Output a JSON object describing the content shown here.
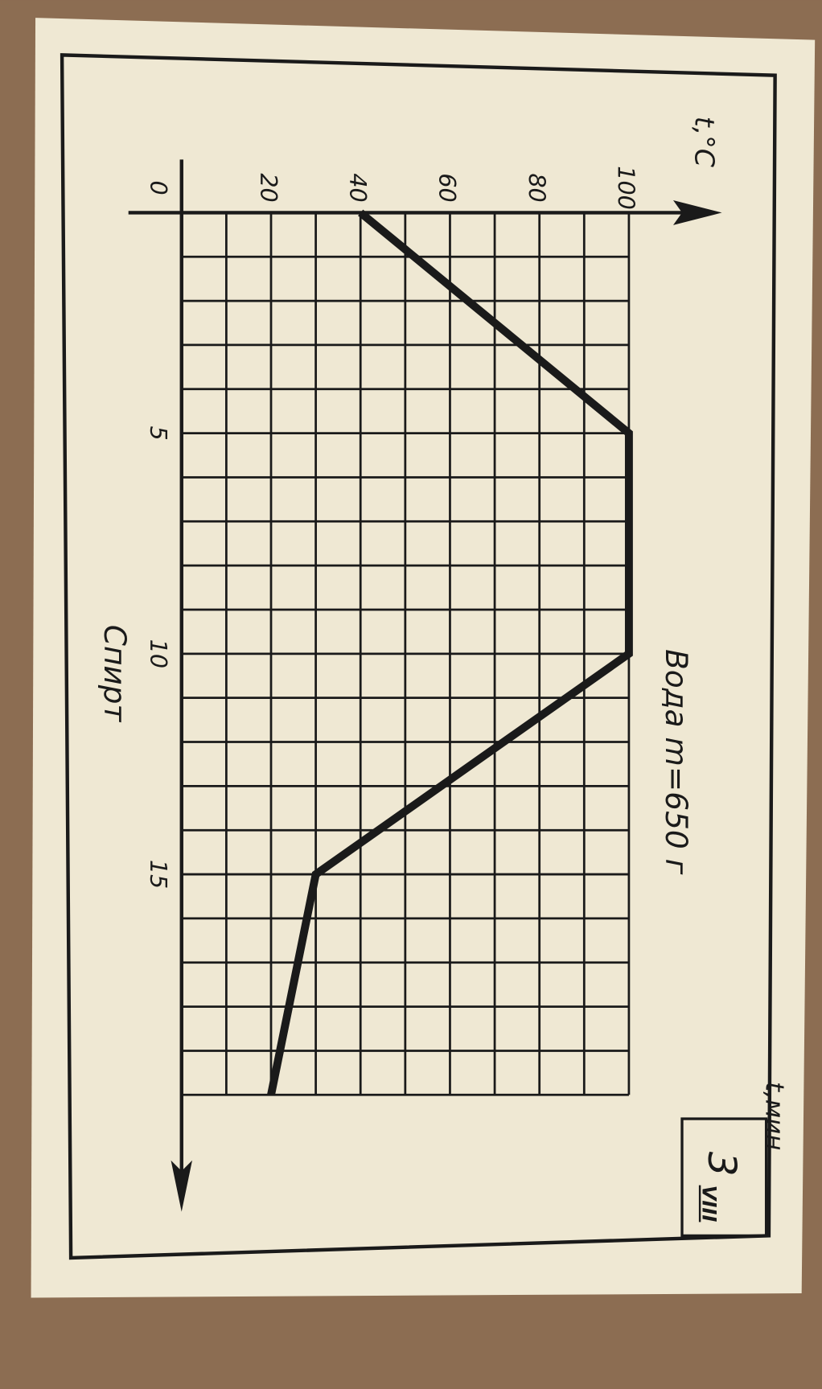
{
  "chart_data": {
    "type": "line",
    "xlabel": "t,мин",
    "ylabel": "t,°C",
    "x_ticks": [
      "5",
      "10",
      "15"
    ],
    "y_ticks": [
      "0",
      "20",
      "40",
      "60",
      "80",
      "100"
    ],
    "xlim": [
      0,
      20
    ],
    "ylim": [
      0,
      100
    ],
    "grid": true,
    "orientation": "rotated 90° clockwise (time axis runs downward)",
    "series": [
      {
        "x": [
          0,
          5,
          10,
          15,
          20
        ],
        "y": [
          40,
          100,
          100,
          30,
          20
        ]
      }
    ],
    "annotations": [
      "Вода  m=650 г",
      "Спирт"
    ],
    "card_number": "3",
    "card_series": "VIII"
  },
  "colors": {
    "card": "#efe8d3",
    "ink": "#1a1a1a",
    "background": "#8c6d52"
  }
}
